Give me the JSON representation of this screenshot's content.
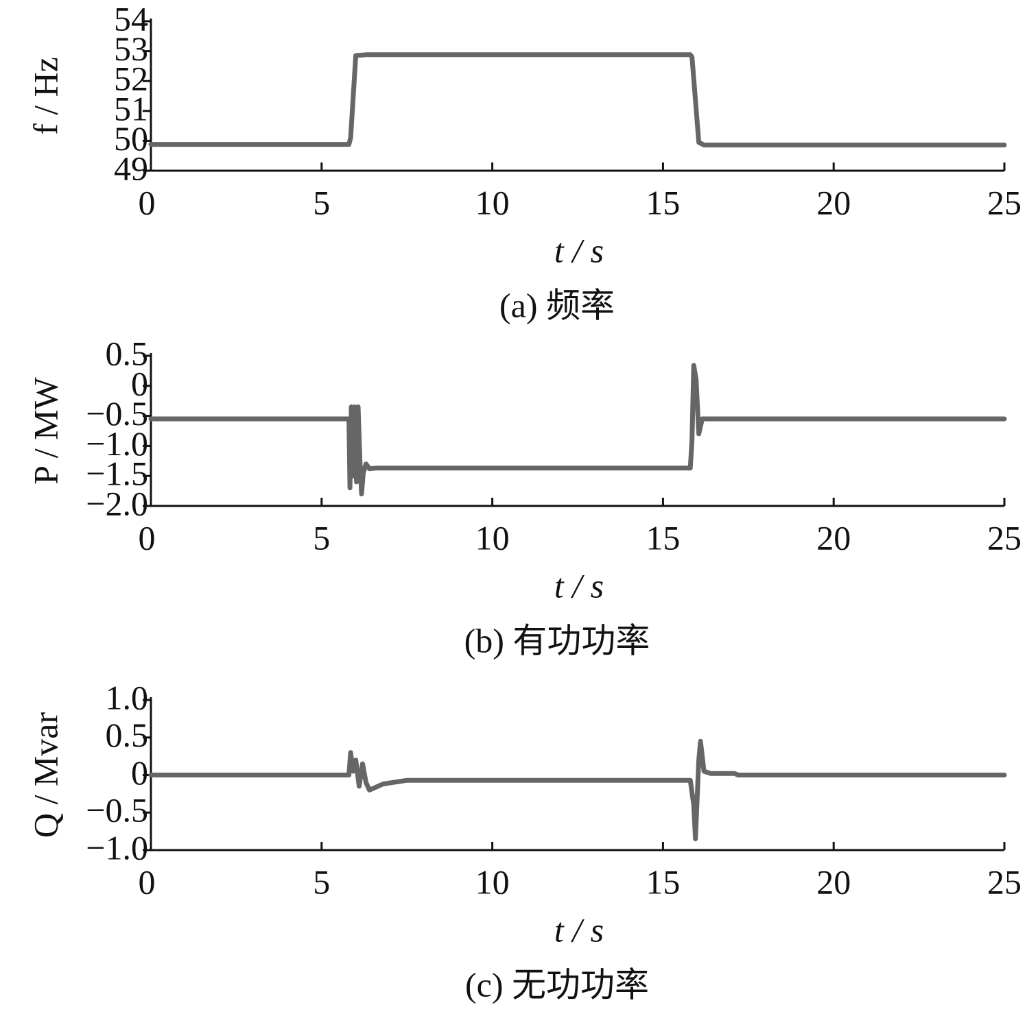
{
  "chart_data": [
    {
      "type": "line",
      "ylabel": "f / Hz",
      "xlabel": "t / s",
      "caption": "(a)  频率",
      "color": "#666666",
      "x": [
        0,
        5.8,
        5.85,
        6.0,
        6.3,
        15.8,
        15.85,
        16.05,
        16.2,
        25
      ],
      "values": [
        49.88,
        49.88,
        50.1,
        52.85,
        52.88,
        52.88,
        52.8,
        49.95,
        49.86,
        49.86
      ],
      "xlim": [
        0,
        25
      ],
      "xticks": [
        0,
        5,
        10,
        15,
        20,
        25
      ],
      "ylim": [
        49,
        54
      ],
      "yticks": [
        49,
        50,
        51,
        52,
        53,
        54
      ]
    },
    {
      "type": "line",
      "ylabel": "P / MW",
      "xlabel": "t / s",
      "caption": "(b)  有功功率",
      "color": "#666666",
      "x": [
        0,
        5.8,
        5.83,
        5.87,
        5.92,
        5.97,
        6.02,
        6.07,
        6.12,
        6.17,
        6.22,
        6.3,
        6.4,
        6.6,
        15.8,
        15.85,
        15.9,
        15.97,
        16.05,
        16.15,
        16.3,
        25
      ],
      "values": [
        -0.55,
        -0.55,
        -1.7,
        -0.35,
        -1.5,
        -0.35,
        -1.6,
        -0.35,
        -1.2,
        -1.8,
        -1.45,
        -1.3,
        -1.38,
        -1.37,
        -1.37,
        -0.9,
        0.34,
        0.1,
        -0.8,
        -0.55,
        -0.55,
        -0.55
      ],
      "xlim": [
        0,
        25
      ],
      "xticks": [
        0,
        5,
        10,
        15,
        20,
        25
      ],
      "ylim": [
        -2.0,
        0.5
      ],
      "yticks": [
        {
          "value": -2.0,
          "label": "−2.0"
        },
        {
          "value": -1.5,
          "label": "−1.5"
        },
        {
          "value": -1.0,
          "label": "−1.0"
        },
        {
          "value": -0.5,
          "label": "−0.5"
        },
        0,
        0.5
      ]
    },
    {
      "type": "line",
      "ylabel": "Q / Mvar",
      "xlabel": "t / s",
      "caption": "(c)  无功功率",
      "color": "#666666",
      "x": [
        0,
        5.8,
        5.85,
        5.92,
        6.0,
        6.1,
        6.2,
        6.3,
        6.4,
        6.8,
        7.5,
        15.8,
        15.9,
        15.95,
        16.05,
        16.1,
        16.2,
        16.4,
        17.1,
        17.2,
        25
      ],
      "values": [
        0,
        0,
        0.3,
        0.05,
        0.2,
        -0.15,
        0.15,
        -0.1,
        -0.2,
        -0.12,
        -0.07,
        -0.07,
        -0.4,
        -0.85,
        0.2,
        0.45,
        0.05,
        0.02,
        0.02,
        0,
        0
      ],
      "xlim": [
        0,
        25
      ],
      "xticks": [
        0,
        5,
        10,
        15,
        20,
        25
      ],
      "ylim": [
        -1.0,
        1.0
      ],
      "yticks": [
        {
          "value": -1.0,
          "label": "−1.0"
        },
        {
          "value": -0.5,
          "label": "−0.5"
        },
        0,
        0.5,
        {
          "value": 1.0,
          "label": "1.0"
        }
      ]
    }
  ]
}
